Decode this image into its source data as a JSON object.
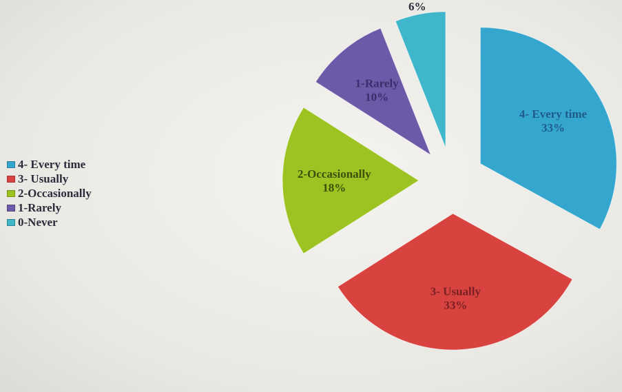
{
  "chart_data": {
    "type": "pie",
    "categories": [
      "4- Every time",
      "3- Usually",
      "2-Occasionally",
      "1-Rarely",
      "0-Never"
    ],
    "values": [
      33,
      33,
      18,
      10,
      6
    ],
    "slice_labels": [
      {
        "name": "4- Every time",
        "value": "33%"
      },
      {
        "name": "3- Usually",
        "value": "33%"
      },
      {
        "name": "2-Occasionally",
        "value": "18%"
      },
      {
        "name": "1-Rarely",
        "value": "10%"
      },
      {
        "name": "0-Never",
        "value": "6%"
      }
    ],
    "colors": [
      "#35a7cf",
      "#d8423f",
      "#9cc321",
      "#6c5aa8",
      "#3fb6c9"
    ],
    "legend_position": "left",
    "title": ""
  },
  "legend": {
    "items": [
      {
        "label": "4- Every time",
        "color": "#35a7cf"
      },
      {
        "label": "3- Usually",
        "color": "#d8423f"
      },
      {
        "label": "2-Occasionally",
        "color": "#9cc321"
      },
      {
        "label": "1-Rarely",
        "color": "#6c5aa8"
      },
      {
        "label": "0-Never",
        "color": "#3fb6c9"
      }
    ]
  }
}
